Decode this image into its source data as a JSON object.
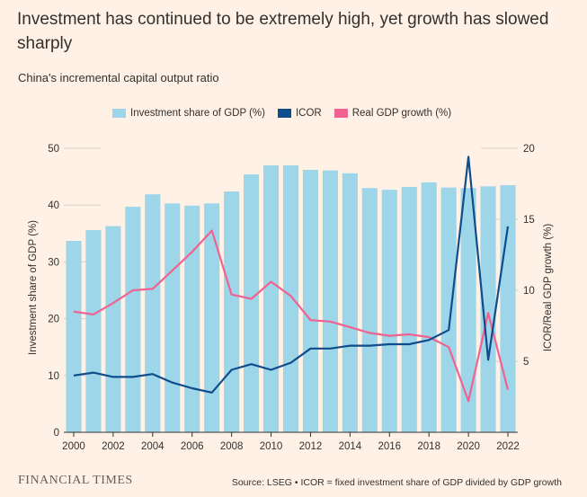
{
  "header": {
    "title": "Investment has continued to be extremely high, yet growth has slowed sharply",
    "subtitle": "China's incremental capital output ratio"
  },
  "footer": {
    "logo": "FINANCIAL TIMES",
    "source": "Source: LSEG • ICOR = fixed investment share of GDP divided by GDP growth"
  },
  "colors": {
    "background": "#fff1e5",
    "investment": "#9dd6e8",
    "icor": "#0f4c8c",
    "gdp": "#f06292",
    "axis": "#33302e",
    "grid": "#d9cfc5"
  },
  "chart_data": {
    "type": "bar",
    "x": [
      2000,
      2001,
      2002,
      2003,
      2004,
      2005,
      2006,
      2007,
      2008,
      2009,
      2010,
      2011,
      2012,
      2013,
      2014,
      2015,
      2016,
      2017,
      2018,
      2019,
      2020,
      2021,
      2022
    ],
    "series": [
      {
        "name": "Investment share of GDP (%)",
        "type": "bar",
        "axis": "left",
        "values": [
          33.7,
          35.6,
          36.3,
          39.7,
          41.9,
          40.3,
          39.9,
          40.3,
          42.4,
          45.4,
          47.0,
          47.0,
          46.2,
          46.1,
          45.6,
          43.0,
          42.7,
          43.2,
          44.0,
          43.1,
          43.0,
          43.3,
          43.5
        ]
      },
      {
        "name": "ICOR",
        "type": "line",
        "axis": "right",
        "values": [
          4.0,
          4.2,
          3.9,
          3.9,
          4.1,
          3.5,
          3.1,
          2.8,
          4.4,
          4.8,
          4.4,
          4.9,
          5.9,
          5.9,
          6.1,
          6.1,
          6.2,
          6.2,
          6.5,
          7.2,
          19.4,
          5.1,
          14.5
        ]
      },
      {
        "name": "Real GDP growth (%)",
        "type": "line",
        "axis": "right",
        "values": [
          8.5,
          8.3,
          9.1,
          10.0,
          10.1,
          11.4,
          12.7,
          14.2,
          9.7,
          9.4,
          10.6,
          9.6,
          7.9,
          7.8,
          7.4,
          7.0,
          6.8,
          6.9,
          6.7,
          6.0,
          2.2,
          8.4,
          3.0
        ]
      }
    ],
    "ylabel": "Investment share of GDP (%)",
    "ylabel_right": "ICOR/Real GDP growth (%)",
    "ylim": [
      0,
      50
    ],
    "ylim_right": [
      0,
      20
    ],
    "yticks": [
      0,
      10,
      20,
      30,
      40,
      50
    ],
    "yticks_right": [
      5,
      10,
      15,
      20
    ],
    "xticks": [
      2000,
      2002,
      2004,
      2006,
      2008,
      2010,
      2012,
      2014,
      2016,
      2018,
      2020,
      2022
    ],
    "grid": true,
    "legend_position": "top"
  }
}
